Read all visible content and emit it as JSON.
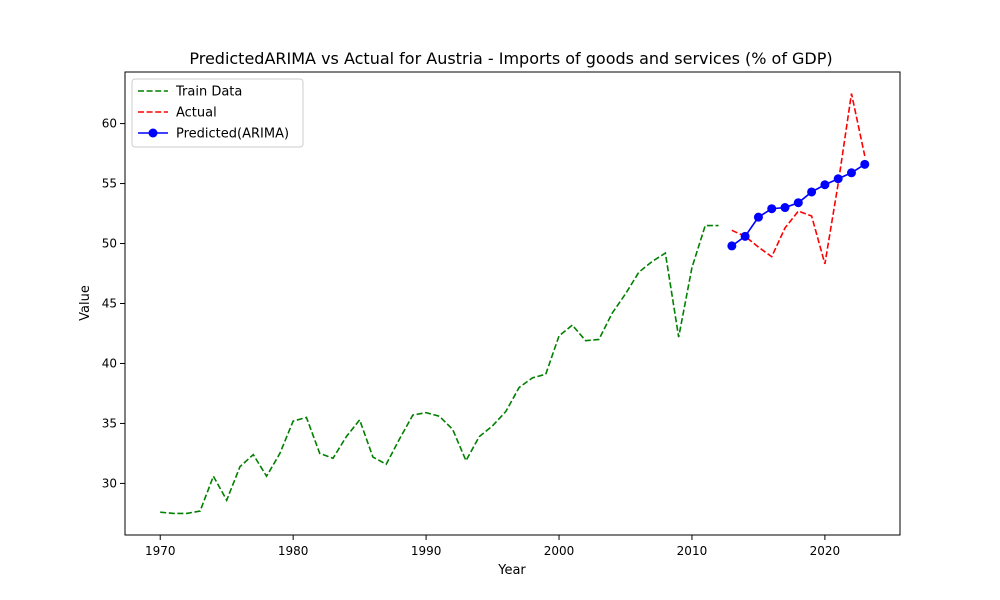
{
  "chart_data": {
    "type": "line",
    "title": "PredictedARIMA vs Actual for Austria - Imports of goods and services (% of GDP)",
    "xlabel": "Year",
    "ylabel": "Value",
    "xlim": [
      1967.35,
      2025.65
    ],
    "ylim": [
      25.7,
      64.3
    ],
    "xticks": [
      1970,
      1980,
      1990,
      2000,
      2010,
      2020
    ],
    "yticks": [
      30,
      35,
      40,
      45,
      50,
      55,
      60
    ],
    "grid": false,
    "legend_position": "top-left",
    "series": [
      {
        "name": "Train Data",
        "color": "#008000",
        "style": "dashed",
        "marker": "none",
        "x": [
          1970,
          1971,
          1972,
          1973,
          1974,
          1975,
          1976,
          1977,
          1978,
          1979,
          1980,
          1981,
          1982,
          1983,
          1984,
          1985,
          1986,
          1987,
          1988,
          1989,
          1990,
          1991,
          1992,
          1993,
          1994,
          1995,
          1996,
          1997,
          1998,
          1999,
          2000,
          2001,
          2002,
          2003,
          2004,
          2005,
          2006,
          2007,
          2008,
          2009,
          2010,
          2011,
          2012
        ],
        "y": [
          27.6,
          27.5,
          27.5,
          27.7,
          30.6,
          28.6,
          31.4,
          32.4,
          30.6,
          32.5,
          35.2,
          35.5,
          32.5,
          32.1,
          33.9,
          35.3,
          32.2,
          31.6,
          33.7,
          35.7,
          35.9,
          35.6,
          34.5,
          31.9,
          33.9,
          34.8,
          36.0,
          38.0,
          38.8,
          39.1,
          42.3,
          43.2,
          41.9,
          42.0,
          44.2,
          45.8,
          47.6,
          48.5,
          49.2,
          42.2,
          48.0,
          51.5,
          51.5
        ]
      },
      {
        "name": "Actual",
        "color": "#ff0000",
        "style": "dashed",
        "marker": "none",
        "x": [
          2013,
          2014,
          2015,
          2016,
          2017,
          2018,
          2019,
          2020,
          2021,
          2022,
          2023
        ],
        "y": [
          51.1,
          50.6,
          49.7,
          48.9,
          51.3,
          52.7,
          52.3,
          48.3,
          55.0,
          62.5,
          57.3
        ]
      },
      {
        "name": "Predicted(ARIMA)",
        "color": "#0000ff",
        "style": "solid",
        "marker": "circle",
        "x": [
          2013,
          2014,
          2015,
          2016,
          2017,
          2018,
          2019,
          2020,
          2021,
          2022,
          2023
        ],
        "y": [
          49.8,
          50.6,
          52.2,
          52.9,
          53.0,
          53.4,
          54.3,
          54.9,
          55.4,
          55.9,
          56.6
        ]
      }
    ]
  }
}
